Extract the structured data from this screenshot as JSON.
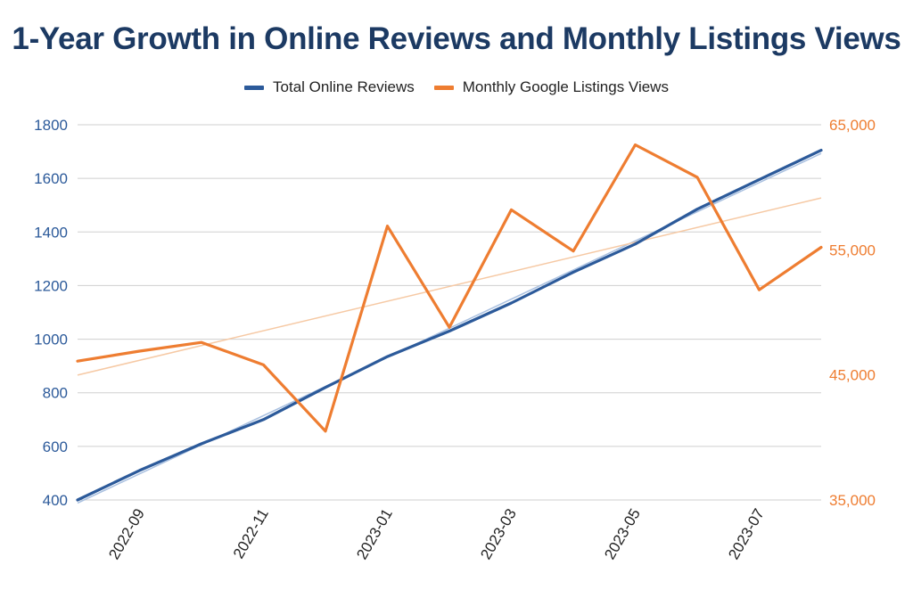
{
  "chart_data": {
    "type": "line",
    "title": "1-Year Growth in Online Reviews and Monthly Listings Views",
    "x": [
      "2022-08",
      "2022-09",
      "2022-10",
      "2022-11",
      "2022-12",
      "2023-01",
      "2023-02",
      "2023-03",
      "2023-04",
      "2023-05",
      "2023-06",
      "2023-07",
      "2023-08"
    ],
    "x_tick_labels": [
      "2022-09",
      "2022-11",
      "2023-01",
      "2023-03",
      "2023-05",
      "2023-07"
    ],
    "series": [
      {
        "name": "Total Online Reviews",
        "axis": "left",
        "color": "#2c5a9a",
        "values": [
          400,
          510,
          610,
          700,
          820,
          935,
          1030,
          1135,
          1250,
          1355,
          1485,
          1595,
          1705
        ],
        "trendline": true
      },
      {
        "name": "Monthly Google Listings Views",
        "axis": "right",
        "color": "#ee7d31",
        "values": [
          46100,
          46900,
          47600,
          45800,
          40500,
          56900,
          48800,
          58200,
          54900,
          63400,
          60800,
          51800,
          55200
        ],
        "trendline": true
      }
    ],
    "y_left": {
      "ticks": [
        "400",
        "600",
        "800",
        "1000",
        "1200",
        "1400",
        "1600",
        "1800"
      ],
      "ylim": [
        400,
        1800
      ],
      "color": "#2c5a9a"
    },
    "y_right": {
      "ticks": [
        "35,000",
        "45,000",
        "55,000",
        "65,000"
      ],
      "ylim": [
        35000,
        65000
      ],
      "color": "#ee7d31"
    },
    "grid": true,
    "legend_position": "top"
  }
}
